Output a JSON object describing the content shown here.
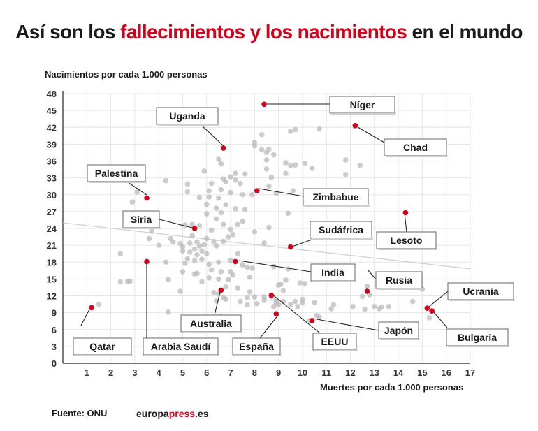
{
  "title": {
    "parts": [
      {
        "text": "Así son los ",
        "highlight": false
      },
      {
        "text": "fallecimientos y los nacimientos",
        "highlight": true
      },
      {
        "text": " en el mundo",
        "highlight": false
      }
    ]
  },
  "source": "Fuente: ONU",
  "brand": {
    "part1": "europa",
    "part2": "press",
    "part3": ".es"
  },
  "colors": {
    "highlight": "#d0021b",
    "points": "#b9b9b9",
    "grid": "#e6e6e6",
    "trend": "#cfcfcf"
  },
  "chart_data": {
    "type": "scatter",
    "title": "Así son los fallecimientos y los nacimientos en el mundo",
    "xlabel": "Muertes por cada 1.000 personas",
    "ylabel": "Nacimientos por cada 1.000 personas",
    "xlim": [
      0,
      17
    ],
    "ylim": [
      0,
      48
    ],
    "xticks": [
      1,
      2,
      3,
      4,
      5,
      6,
      7,
      8,
      9,
      10,
      11,
      12,
      13,
      14,
      15,
      16,
      17
    ],
    "yticks": [
      0,
      3,
      6,
      9,
      12,
      15,
      18,
      21,
      24,
      27,
      30,
      33,
      36,
      39,
      42,
      45,
      48
    ],
    "grid": true,
    "trendline": {
      "x": [
        0,
        17
      ],
      "y": [
        25.0,
        16.8
      ]
    },
    "highlighted": [
      {
        "label": "Níger",
        "x": 8.4,
        "y": 46.1
      },
      {
        "label": "Chad",
        "x": 12.2,
        "y": 42.3
      },
      {
        "label": "Uganda",
        "x": 6.7,
        "y": 38.3
      },
      {
        "label": "Palestina",
        "x": 3.5,
        "y": 29.4
      },
      {
        "label": "Zimbabue",
        "x": 8.1,
        "y": 30.7
      },
      {
        "label": "Lesoto",
        "x": 14.3,
        "y": 26.8
      },
      {
        "label": "Siria",
        "x": 5.5,
        "y": 24.0
      },
      {
        "label": "Sudáfrica",
        "x": 9.5,
        "y": 20.7
      },
      {
        "label": "India",
        "x": 7.2,
        "y": 18.1
      },
      {
        "label": "Arabia Saudí",
        "x": 3.5,
        "y": 18.1
      },
      {
        "label": "Rusia",
        "x": 12.7,
        "y": 12.8
      },
      {
        "label": "Australia",
        "x": 6.6,
        "y": 13.0
      },
      {
        "label": "Ucrania",
        "x": 15.2,
        "y": 9.8
      },
      {
        "label": "Bulgaria",
        "x": 15.4,
        "y": 9.3
      },
      {
        "label": "Qatar",
        "x": 1.2,
        "y": 9.9
      },
      {
        "label": "España",
        "x": 8.9,
        "y": 8.8
      },
      {
        "label": "Japón",
        "x": 10.4,
        "y": 7.6
      },
      {
        "label": "EEUU",
        "x": 8.7,
        "y": 12.1
      }
    ],
    "other_points": [
      [
        1.5,
        10.5
      ],
      [
        2.4,
        19.5
      ],
      [
        2.4,
        14.5
      ],
      [
        2.7,
        14.6
      ],
      [
        2.8,
        14.6
      ],
      [
        2.9,
        28.7
      ],
      [
        3.1,
        30.5
      ],
      [
        3.2,
        25.4
      ],
      [
        3.6,
        22.2
      ],
      [
        3.7,
        23.5
      ],
      [
        4.0,
        21.0
      ],
      [
        4.3,
        32.5
      ],
      [
        4.3,
        18.0
      ],
      [
        4.4,
        14.9
      ],
      [
        4.4,
        9.1
      ],
      [
        4.5,
        22.2
      ],
      [
        4.6,
        21.6
      ],
      [
        4.9,
        21.3
      ],
      [
        4.9,
        12.8
      ],
      [
        5.0,
        20.7
      ],
      [
        5.0,
        20.0
      ],
      [
        5.0,
        16.3
      ],
      [
        5.1,
        24.6
      ],
      [
        5.1,
        17.8
      ],
      [
        5.2,
        30.5
      ],
      [
        5.2,
        31.9
      ],
      [
        5.2,
        18.6
      ],
      [
        5.3,
        21.4
      ],
      [
        5.3,
        19.8
      ],
      [
        5.4,
        24.7
      ],
      [
        5.4,
        22.7
      ],
      [
        5.5,
        20.3
      ],
      [
        5.5,
        18.3
      ],
      [
        5.5,
        15.9
      ],
      [
        5.6,
        21.6
      ],
      [
        5.6,
        19.3
      ],
      [
        5.6,
        16.0
      ],
      [
        5.7,
        29.5
      ],
      [
        5.7,
        24.5
      ],
      [
        5.7,
        20.9
      ],
      [
        5.8,
        20.0
      ],
      [
        5.8,
        18.5
      ],
      [
        5.8,
        14.5
      ],
      [
        5.9,
        21.1
      ],
      [
        5.9,
        34.2
      ],
      [
        6.0,
        28.3
      ],
      [
        6.0,
        26.6
      ],
      [
        6.0,
        22.2
      ],
      [
        6.0,
        19.5
      ],
      [
        6.1,
        17.6
      ],
      [
        6.1,
        30.7
      ],
      [
        6.1,
        29.6
      ],
      [
        6.1,
        15.2
      ],
      [
        6.2,
        32.0
      ],
      [
        6.2,
        23.7
      ],
      [
        6.2,
        16.6
      ],
      [
        6.3,
        12.6
      ],
      [
        6.3,
        21.7
      ],
      [
        6.4,
        27.6
      ],
      [
        6.4,
        25.7
      ],
      [
        6.4,
        20.9
      ],
      [
        6.4,
        11.1
      ],
      [
        6.5,
        36.3
      ],
      [
        6.5,
        29.4
      ],
      [
        6.5,
        18.0
      ],
      [
        6.5,
        15.0
      ],
      [
        6.5,
        12.3
      ],
      [
        6.6,
        35.5
      ],
      [
        6.6,
        30.9
      ],
      [
        6.6,
        26.8
      ],
      [
        6.6,
        16.3
      ],
      [
        6.6,
        8.3
      ],
      [
        6.7,
        32.8
      ],
      [
        6.7,
        24.7
      ],
      [
        6.7,
        21.7
      ],
      [
        6.7,
        11.7
      ],
      [
        6.8,
        32.3
      ],
      [
        6.8,
        28.2
      ],
      [
        6.8,
        13.6
      ],
      [
        6.8,
        11.4
      ],
      [
        6.9,
        22.5
      ],
      [
        6.9,
        14.9
      ],
      [
        7.0,
        33.2
      ],
      [
        7.0,
        30.4
      ],
      [
        7.0,
        23.8
      ],
      [
        7.0,
        18.3
      ],
      [
        7.0,
        16.3
      ],
      [
        7.1,
        22.9
      ],
      [
        7.1,
        15.7
      ],
      [
        7.2,
        33.8
      ],
      [
        7.2,
        32.6
      ],
      [
        7.2,
        27.5
      ],
      [
        7.3,
        24.7
      ],
      [
        7.3,
        19.5
      ],
      [
        7.3,
        13.4
      ],
      [
        7.4,
        32.0
      ],
      [
        7.4,
        11.0
      ],
      [
        7.5,
        30.0
      ],
      [
        7.5,
        25.3
      ],
      [
        7.5,
        17.5
      ],
      [
        7.6,
        33.7
      ],
      [
        7.6,
        27.4
      ],
      [
        7.7,
        17.1
      ],
      [
        7.7,
        11.7
      ],
      [
        7.7,
        10.4
      ],
      [
        7.8,
        15.3
      ],
      [
        7.8,
        12.7
      ],
      [
        7.9,
        30.0
      ],
      [
        7.9,
        16.9
      ],
      [
        8.0,
        39.3
      ],
      [
        8.0,
        38.7
      ],
      [
        8.0,
        23.4
      ],
      [
        8.0,
        11.8
      ],
      [
        8.1,
        10.6
      ],
      [
        8.3,
        40.7
      ],
      [
        8.3,
        38.0
      ],
      [
        8.4,
        21.4
      ],
      [
        8.4,
        11.8
      ],
      [
        8.4,
        11.2
      ],
      [
        8.5,
        37.5
      ],
      [
        8.5,
        36.2
      ],
      [
        8.5,
        34.6
      ],
      [
        8.6,
        38.1
      ],
      [
        8.6,
        31.5
      ],
      [
        8.6,
        24.2
      ],
      [
        8.7,
        33.1
      ],
      [
        8.7,
        11.8
      ],
      [
        8.8,
        37.1
      ],
      [
        8.8,
        17.2
      ],
      [
        8.8,
        10.1
      ],
      [
        8.9,
        30.3
      ],
      [
        8.9,
        11.3
      ],
      [
        8.9,
        10.8
      ],
      [
        9.0,
        13.9
      ],
      [
        9.0,
        10.4
      ],
      [
        9.1,
        14.1
      ],
      [
        9.2,
        12.9
      ],
      [
        9.2,
        11.0
      ],
      [
        9.3,
        35.7
      ],
      [
        9.3,
        33.8
      ],
      [
        9.3,
        14.8
      ],
      [
        9.4,
        26.7
      ],
      [
        9.4,
        16.8
      ],
      [
        9.5,
        41.3
      ],
      [
        9.5,
        35.2
      ],
      [
        9.5,
        10.5
      ],
      [
        9.6,
        30.7
      ],
      [
        9.7,
        41.6
      ],
      [
        9.7,
        35.3
      ],
      [
        9.7,
        11.0
      ],
      [
        9.8,
        10.1
      ],
      [
        9.9,
        14.3
      ],
      [
        10.0,
        11.4
      ],
      [
        10.0,
        10.8
      ],
      [
        10.1,
        35.6
      ],
      [
        10.1,
        14.2
      ],
      [
        10.3,
        7.6
      ],
      [
        10.4,
        34.7
      ],
      [
        10.5,
        10.8
      ],
      [
        10.6,
        8.5
      ],
      [
        10.7,
        41.7
      ],
      [
        10.7,
        8.2
      ],
      [
        11.2,
        9.7
      ],
      [
        11.3,
        10.4
      ],
      [
        11.8,
        36.2
      ],
      [
        11.8,
        33.6
      ],
      [
        12.1,
        10.1
      ],
      [
        12.4,
        35.2
      ],
      [
        12.5,
        11.9
      ],
      [
        12.6,
        9.6
      ],
      [
        12.7,
        13.7
      ],
      [
        12.8,
        12.2
      ],
      [
        13.0,
        10.1
      ],
      [
        13.2,
        9.7
      ],
      [
        13.3,
        10.0
      ],
      [
        13.6,
        10.1
      ],
      [
        14.6,
        11.0
      ],
      [
        15.0,
        13.2
      ],
      [
        15.3,
        8.1
      ]
    ]
  }
}
